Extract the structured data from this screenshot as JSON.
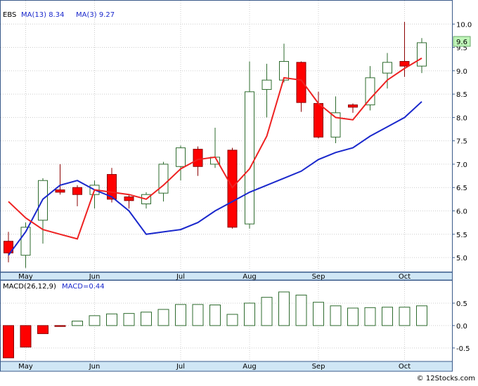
{
  "chart_data": [
    {
      "type": "candlestick",
      "ticker": "EBS",
      "legend": {
        "ma13_label": "MA(13)",
        "ma13_value": "8.34",
        "ma3_label": "MA(3)",
        "ma3_value": "9.27"
      },
      "last_price_label": "9.6",
      "ylim": [
        4.7,
        10.5
      ],
      "y_ticks": [
        "5.0",
        "5.5",
        "6.0",
        "6.5",
        "7.0",
        "7.5",
        "8.0",
        "8.5",
        "9.0",
        "9.5",
        "10.0"
      ],
      "y_tick_values": [
        5.0,
        5.5,
        6.0,
        6.5,
        7.0,
        7.5,
        8.0,
        8.5,
        9.0,
        9.5,
        10.0
      ],
      "x_month_labels": [
        {
          "label": "May",
          "index": 1
        },
        {
          "label": "Jun",
          "index": 5
        },
        {
          "label": "Jul",
          "index": 10
        },
        {
          "label": "Aug",
          "index": 14
        },
        {
          "label": "Sep",
          "index": 18
        },
        {
          "label": "Oct",
          "index": 23
        }
      ],
      "candles": [
        {
          "o": 5.35,
          "h": 5.55,
          "l": 4.9,
          "c": 5.1,
          "up": false
        },
        {
          "o": 5.05,
          "h": 5.75,
          "l": 4.78,
          "c": 5.65,
          "up": true
        },
        {
          "o": 5.8,
          "h": 6.7,
          "l": 5.3,
          "c": 6.65,
          "up": true
        },
        {
          "o": 6.45,
          "h": 7.0,
          "l": 6.35,
          "c": 6.4,
          "up": false
        },
        {
          "o": 6.5,
          "h": 6.55,
          "l": 6.1,
          "c": 6.35,
          "up": false
        },
        {
          "o": 6.35,
          "h": 6.65,
          "l": 6.05,
          "c": 6.55,
          "up": true
        },
        {
          "o": 6.78,
          "h": 6.92,
          "l": 6.18,
          "c": 6.25,
          "up": false
        },
        {
          "o": 6.3,
          "h": 6.35,
          "l": 6.05,
          "c": 6.22,
          "up": false
        },
        {
          "o": 6.15,
          "h": 6.4,
          "l": 6.05,
          "c": 6.35,
          "up": true
        },
        {
          "o": 6.38,
          "h": 7.05,
          "l": 6.2,
          "c": 7.0,
          "up": true
        },
        {
          "o": 6.95,
          "h": 7.4,
          "l": 6.65,
          "c": 7.35,
          "up": true
        },
        {
          "o": 7.32,
          "h": 7.38,
          "l": 6.75,
          "c": 6.95,
          "up": false
        },
        {
          "o": 7.0,
          "h": 7.78,
          "l": 6.92,
          "c": 7.15,
          "up": true
        },
        {
          "o": 7.3,
          "h": 7.35,
          "l": 5.62,
          "c": 5.65,
          "up": false
        },
        {
          "o": 5.72,
          "h": 9.2,
          "l": 5.62,
          "c": 8.55,
          "up": true
        },
        {
          "o": 8.6,
          "h": 9.15,
          "l": 8.0,
          "c": 8.8,
          "up": true
        },
        {
          "o": 8.8,
          "h": 9.58,
          "l": 8.75,
          "c": 9.2,
          "up": true
        },
        {
          "o": 9.18,
          "h": 9.2,
          "l": 8.12,
          "c": 8.32,
          "up": false
        },
        {
          "o": 8.3,
          "h": 8.55,
          "l": 7.55,
          "c": 7.58,
          "up": false
        },
        {
          "o": 7.58,
          "h": 8.45,
          "l": 7.45,
          "c": 8.1,
          "up": true
        },
        {
          "o": 8.27,
          "h": 8.3,
          "l": 8.1,
          "c": 8.22,
          "up": false
        },
        {
          "o": 8.27,
          "h": 9.1,
          "l": 8.15,
          "c": 8.85,
          "up": true
        },
        {
          "o": 8.95,
          "h": 9.38,
          "l": 8.62,
          "c": 9.18,
          "up": true
        },
        {
          "o": 9.2,
          "h": 10.05,
          "l": 8.87,
          "c": 9.1,
          "up": false
        },
        {
          "o": 9.1,
          "h": 9.7,
          "l": 8.95,
          "c": 9.6,
          "up": true
        }
      ],
      "ma3": [
        6.2,
        5.85,
        5.6,
        5.5,
        5.4,
        6.45,
        6.4,
        6.35,
        6.25,
        6.55,
        6.9,
        7.1,
        7.15,
        6.5,
        6.9,
        7.6,
        8.85,
        8.8,
        8.3,
        8.0,
        7.95,
        8.4,
        8.8,
        9.05,
        9.27
      ],
      "ma13": [
        5.05,
        5.55,
        6.25,
        6.55,
        6.65,
        6.45,
        6.3,
        6.0,
        5.5,
        5.55,
        5.6,
        5.75,
        6.0,
        6.2,
        6.4,
        6.55,
        6.7,
        6.85,
        7.1,
        7.25,
        7.35,
        7.6,
        7.8,
        8.0,
        8.34
      ],
      "ma3_start_index": 0,
      "ma13_start_index": 0,
      "up_color": "#ffffff",
      "up_border": "#2e6b2e",
      "down_color": "#ff0000",
      "down_border": "#8b0000",
      "ma3_color": "#ee2222",
      "ma13_color": "#1a28cc"
    },
    {
      "type": "bar",
      "legend": {
        "macd_label": "MACD(26,12,9)",
        "macd_value_label": "MACD=",
        "macd_value": "0.44"
      },
      "ylim": [
        -0.8,
        1.0
      ],
      "y_ticks": [
        "0.5",
        "0.0",
        "-0.5"
      ],
      "y_tick_values": [
        0.5,
        0.0,
        -0.5
      ],
      "values": [
        -0.72,
        -0.48,
        -0.18,
        -0.02,
        0.1,
        0.22,
        0.26,
        0.27,
        0.3,
        0.36,
        0.47,
        0.47,
        0.46,
        0.25,
        0.5,
        0.63,
        0.75,
        0.68,
        0.52,
        0.44,
        0.39,
        0.4,
        0.41,
        0.41,
        0.44
      ],
      "neg_color": "#ff0000",
      "pos_border": "#2e6b2e"
    }
  ],
  "watermark": "© 12Stocks.com"
}
